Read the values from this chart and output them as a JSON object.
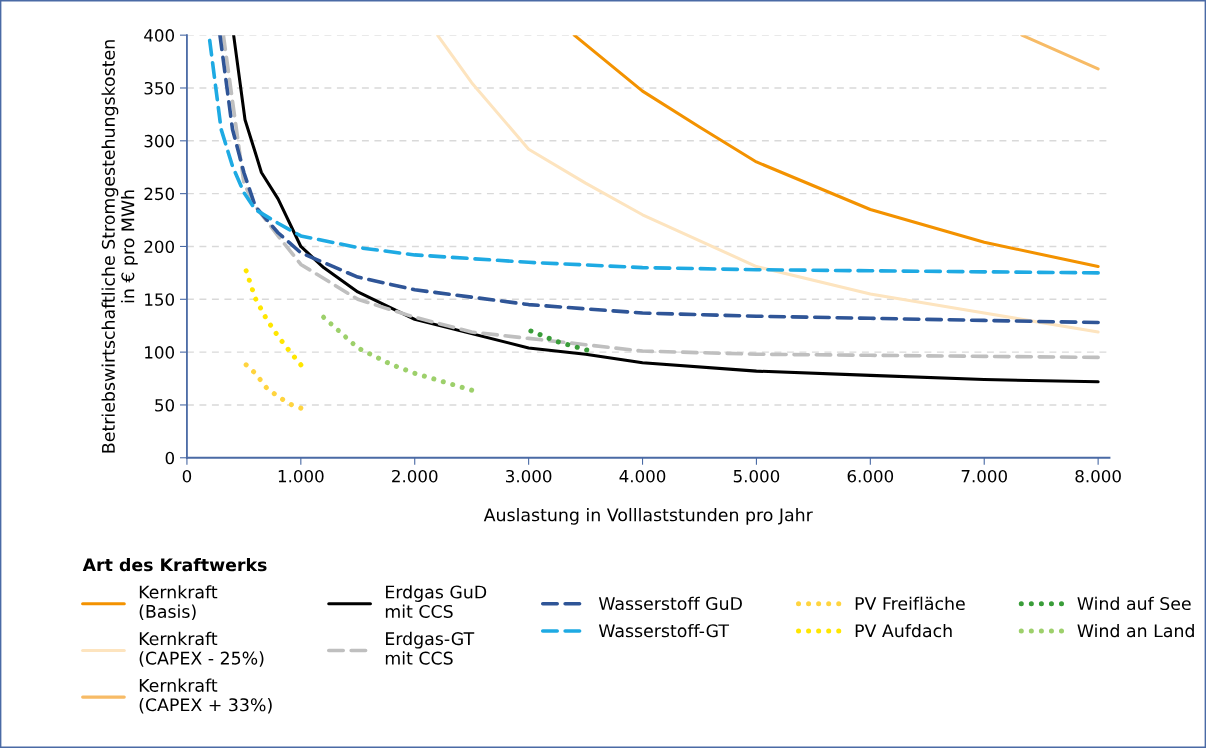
{
  "chart_data": {
    "type": "line",
    "xlabel": "Auslastung in Volllaststunden pro Jahr",
    "ylabel": "Betriebswirtschaftliche Stromgestehungskosten\nin € pro MWh",
    "legend_title": "Art des Kraftwerks",
    "legend": "bottom",
    "grid": "y",
    "marker": "none",
    "xlim": [
      0,
      8100
    ],
    "ylim": [
      0,
      400
    ],
    "xticks": [
      0,
      {
        "value": 1000,
        "label": "1.000"
      },
      {
        "value": 2000,
        "label": "2.000"
      },
      {
        "value": 3000,
        "label": "3.000"
      },
      {
        "value": 4000,
        "label": "4.000"
      },
      {
        "value": 5000,
        "label": "5.000"
      },
      {
        "value": 6000,
        "label": "6.000"
      },
      {
        "value": 7000,
        "label": "7.000"
      },
      {
        "value": 8000,
        "label": "8.000"
      }
    ],
    "yticks": [
      0,
      50,
      100,
      150,
      200,
      250,
      300,
      350,
      400
    ],
    "series": [
      {
        "name": "Kernkraft\n(Basis)",
        "color": "#f39200",
        "line_style": "solid",
        "x": [
          3400,
          4000,
          4500,
          5000,
          6000,
          7000,
          8000
        ],
        "values": [
          400,
          347,
          313,
          280,
          235,
          204,
          181
        ]
      },
      {
        "name": "Kernkraft\n(CAPEX - 25%)",
        "color": "#fde4bf",
        "line_style": "solid",
        "x": [
          2200,
          2500,
          3000,
          3500,
          4000,
          5000,
          6000,
          7000,
          8000
        ],
        "values": [
          400,
          355,
          292,
          260,
          230,
          181,
          155,
          137,
          119
        ]
      },
      {
        "name": "Kernkraft\n(CAPEX + 33%)",
        "color": "#f7bb66",
        "line_style": "solid",
        "x": [
          7330,
          8000
        ],
        "values": [
          400,
          368
        ]
      },
      {
        "name": "Erdgas GuD\nmit CCS",
        "color": "#000000",
        "line_style": "solid",
        "x": [
          410,
          510,
          600,
          654,
          800,
          1000,
          1200,
          1500,
          2000,
          3000,
          3500,
          4000,
          5000,
          6000,
          7000,
          8000
        ],
        "values": [
          400,
          320,
          289,
          270,
          245,
          200,
          180,
          157,
          131,
          104,
          98,
          90,
          82,
          78,
          74,
          72
        ]
      },
      {
        "name": "Erdgas-GT\nmit CCS",
        "color": "#bfbfbf",
        "line_style": "dashed",
        "x": [
          320,
          500,
          600,
          800,
          1000,
          1500,
          2000,
          2500,
          3000,
          3500,
          4000,
          5000,
          6000,
          7000,
          8000
        ],
        "values": [
          400,
          260,
          238,
          210,
          183,
          150,
          133,
          119,
          113,
          107,
          101,
          98,
          97,
          96,
          95
        ]
      },
      {
        "name": "Wasserstoff GuD",
        "color": "#2f5597",
        "line_style": "dashed",
        "x": [
          290,
          400,
          500,
          600,
          800,
          1000,
          1500,
          2000,
          3000,
          4000,
          5000,
          6000,
          7000,
          8000
        ],
        "values": [
          400,
          311,
          270,
          238,
          213,
          194,
          171,
          159,
          145,
          137,
          134,
          132,
          130,
          128
        ]
      },
      {
        "name": "Wasserstoff-GT",
        "color": "#1eaae3",
        "line_style": "dashed",
        "x": [
          200,
          300,
          400,
          500,
          600,
          800,
          1000,
          1500,
          2000,
          3000,
          4000,
          5000,
          6000,
          7000,
          8000
        ],
        "values": [
          395,
          311,
          276,
          251,
          235,
          222,
          210,
          199,
          192,
          185,
          180,
          178,
          177,
          176,
          175
        ]
      },
      {
        "name": "PV Freifläche",
        "color": "#ffd43f",
        "line_style": "dotted",
        "x": [
          520,
          600,
          700,
          800,
          900,
          1000
        ],
        "values": [
          88,
          80,
          66,
          58,
          51,
          47
        ]
      },
      {
        "name": "PV Aufdach",
        "color": "#ffe600",
        "line_style": "dotted",
        "x": [
          520,
          600,
          700,
          800,
          900,
          1000
        ],
        "values": [
          177,
          151,
          131,
          115,
          101,
          88
        ]
      },
      {
        "name": "Wind auf See",
        "color": "#3a9d3a",
        "line_style": "dotted",
        "x": [
          3020,
          3250,
          3510
        ],
        "values": [
          120,
          110,
          102
        ]
      },
      {
        "name": "Wind an Land",
        "color": "#9dd06b",
        "line_style": "dotted",
        "x": [
          1200,
          1500,
          1800,
          2000,
          2500
        ],
        "values": [
          133,
          104,
          88,
          80,
          64
        ]
      }
    ]
  }
}
